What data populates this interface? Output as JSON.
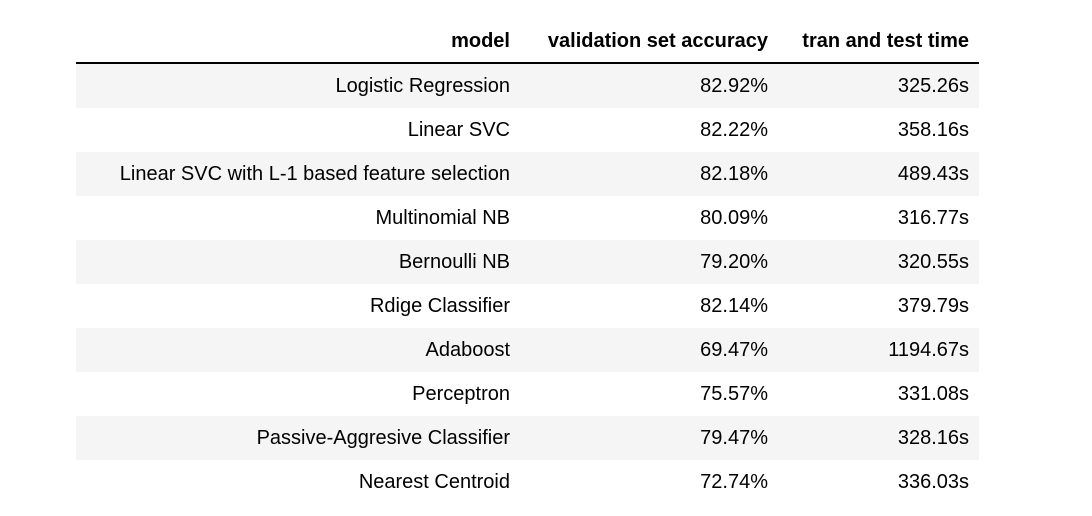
{
  "table": {
    "headers": {
      "model": "model",
      "accuracy": "validation set accuracy",
      "time": "tran and test time"
    },
    "rows": [
      {
        "model": "Logistic Regression",
        "accuracy": "82.92%",
        "time": "325.26s"
      },
      {
        "model": "Linear SVC",
        "accuracy": "82.22%",
        "time": "358.16s"
      },
      {
        "model": "Linear SVC with L-1 based feature selection",
        "accuracy": "82.18%",
        "time": "489.43s"
      },
      {
        "model": "Multinomial NB",
        "accuracy": "80.09%",
        "time": "316.77s"
      },
      {
        "model": "Bernoulli NB",
        "accuracy": "79.20%",
        "time": "320.55s"
      },
      {
        "model": "Rdige Classifier",
        "accuracy": "82.14%",
        "time": "379.79s"
      },
      {
        "model": "Adaboost",
        "accuracy": "69.47%",
        "time": "1194.67s"
      },
      {
        "model": "Perceptron",
        "accuracy": "75.57%",
        "time": "331.08s"
      },
      {
        "model": "Passive-Aggresive Classifier",
        "accuracy": "79.47%",
        "time": "328.16s"
      },
      {
        "model": "Nearest Centroid",
        "accuracy": "72.74%",
        "time": "336.03s"
      }
    ]
  }
}
